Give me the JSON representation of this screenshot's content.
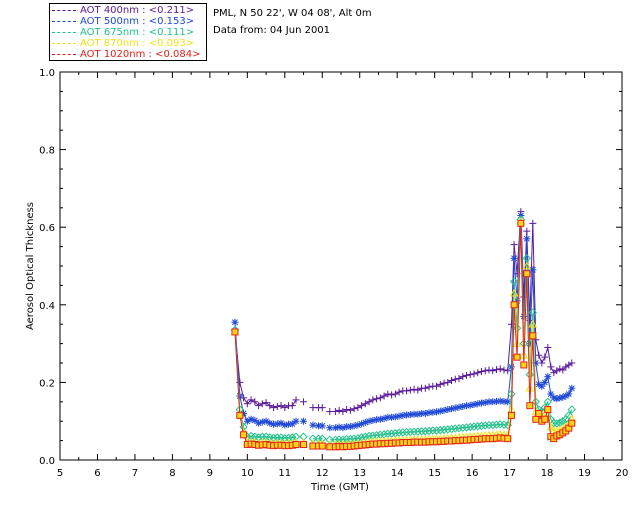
{
  "header": {
    "location": "PML, N 50 22', W 04 08', Alt 0m",
    "date_line": "Data from: 04 Jun 2001"
  },
  "legend": [
    {
      "label": "AOT  400nm : <0.211>",
      "color": "#5a1a9a"
    },
    {
      "label": "AOT  500nm : <0.153>",
      "color": "#1f49d6"
    },
    {
      "label": "AOT  675nm : <0.111>",
      "color": "#21c18b"
    },
    {
      "label": "AOT  870nm : <0.093>",
      "color": "#f0e21a"
    },
    {
      "label": "AOT 1020nm : <0.084>",
      "color": "#e0221b"
    }
  ],
  "chart_data": {
    "type": "scatter",
    "title": "",
    "xlabel": "Time (GMT)",
    "ylabel": "Aerosol Optical Thickness",
    "xlim": [
      5,
      20
    ],
    "ylim": [
      0.0,
      1.0
    ],
    "xticks": [
      5,
      6,
      7,
      8,
      9,
      10,
      11,
      12,
      13,
      14,
      15,
      16,
      17,
      18,
      19,
      20
    ],
    "yticks": [
      0.0,
      0.2,
      0.4,
      0.6,
      0.8,
      1.0
    ],
    "ytick_labels": [
      "0.0",
      "0.2",
      "0.4",
      "0.6",
      "0.8",
      "1.0"
    ],
    "grid": false,
    "x": [
      9.67,
      9.8,
      9.9,
      10.0,
      10.1,
      10.2,
      10.3,
      10.4,
      10.5,
      10.6,
      10.7,
      10.8,
      10.9,
      11.0,
      11.1,
      11.2,
      11.3,
      11.5,
      11.75,
      11.9,
      12.0,
      12.2,
      12.35,
      12.45,
      12.55,
      12.65,
      12.75,
      12.85,
      12.95,
      13.05,
      13.15,
      13.25,
      13.35,
      13.45,
      13.55,
      13.65,
      13.75,
      13.85,
      13.95,
      14.05,
      14.15,
      14.25,
      14.35,
      14.45,
      14.55,
      14.65,
      14.75,
      14.85,
      14.95,
      15.05,
      15.15,
      15.25,
      15.35,
      15.45,
      15.55,
      15.65,
      15.75,
      15.85,
      15.95,
      16.05,
      16.15,
      16.25,
      16.35,
      16.45,
      16.55,
      16.65,
      16.75,
      16.85,
      16.95,
      17.05,
      17.12,
      17.2,
      17.3,
      17.38,
      17.46,
      17.54,
      17.62,
      17.7,
      17.78,
      17.86,
      17.94,
      18.02,
      18.1,
      18.18,
      18.26,
      18.34,
      18.42,
      18.5,
      18.58,
      18.66
    ],
    "series": [
      {
        "name": "AOT  400nm",
        "marker": "plus",
        "values": [
          0.335,
          0.2,
          0.16,
          0.145,
          0.155,
          0.15,
          0.14,
          0.145,
          0.148,
          0.14,
          0.135,
          0.138,
          0.14,
          0.135,
          0.14,
          0.14,
          0.155,
          0.15,
          0.135,
          0.135,
          0.135,
          0.125,
          0.125,
          0.128,
          0.125,
          0.13,
          0.128,
          0.132,
          0.135,
          0.14,
          0.145,
          0.15,
          0.155,
          0.158,
          0.16,
          0.165,
          0.17,
          0.168,
          0.17,
          0.175,
          0.178,
          0.178,
          0.18,
          0.182,
          0.18,
          0.185,
          0.185,
          0.188,
          0.19,
          0.19,
          0.195,
          0.198,
          0.2,
          0.205,
          0.208,
          0.21,
          0.215,
          0.218,
          0.22,
          0.222,
          0.225,
          0.228,
          0.23,
          0.232,
          0.23,
          0.233,
          0.235,
          0.232,
          0.23,
          0.35,
          0.555,
          0.48,
          0.64,
          0.42,
          0.59,
          0.36,
          0.61,
          0.31,
          0.27,
          0.25,
          0.265,
          0.29,
          0.24,
          0.225,
          0.23,
          0.235,
          0.232,
          0.24,
          0.245,
          0.25
        ]
      },
      {
        "name": "AOT  500nm",
        "marker": "star",
        "values": [
          0.355,
          0.165,
          0.12,
          0.1,
          0.105,
          0.102,
          0.095,
          0.098,
          0.1,
          0.095,
          0.092,
          0.093,
          0.095,
          0.09,
          0.092,
          0.093,
          0.1,
          0.1,
          0.09,
          0.088,
          0.088,
          0.083,
          0.083,
          0.085,
          0.083,
          0.086,
          0.086,
          0.088,
          0.09,
          0.093,
          0.097,
          0.1,
          0.102,
          0.104,
          0.105,
          0.107,
          0.11,
          0.11,
          0.111,
          0.113,
          0.115,
          0.116,
          0.117,
          0.118,
          0.118,
          0.12,
          0.12,
          0.122,
          0.123,
          0.124,
          0.126,
          0.128,
          0.13,
          0.132,
          0.134,
          0.136,
          0.138,
          0.14,
          0.141,
          0.143,
          0.145,
          0.147,
          0.148,
          0.15,
          0.15,
          0.151,
          0.152,
          0.151,
          0.15,
          0.24,
          0.52,
          0.41,
          0.63,
          0.37,
          0.57,
          0.3,
          0.49,
          0.25,
          0.195,
          0.19,
          0.2,
          0.215,
          0.17,
          0.16,
          0.158,
          0.16,
          0.162,
          0.165,
          0.17,
          0.185
        ]
      },
      {
        "name": "AOT  675nm",
        "marker": "diamond",
        "values": [
          0.335,
          0.13,
          0.085,
          0.06,
          0.062,
          0.06,
          0.058,
          0.06,
          0.06,
          0.058,
          0.057,
          0.058,
          0.058,
          0.056,
          0.057,
          0.058,
          0.06,
          0.06,
          0.055,
          0.055,
          0.055,
          0.052,
          0.052,
          0.053,
          0.052,
          0.054,
          0.054,
          0.055,
          0.056,
          0.058,
          0.06,
          0.062,
          0.063,
          0.064,
          0.065,
          0.066,
          0.068,
          0.068,
          0.069,
          0.07,
          0.071,
          0.072,
          0.072,
          0.073,
          0.073,
          0.074,
          0.074,
          0.075,
          0.076,
          0.076,
          0.077,
          0.078,
          0.079,
          0.08,
          0.081,
          0.082,
          0.083,
          0.084,
          0.085,
          0.086,
          0.087,
          0.088,
          0.089,
          0.09,
          0.09,
          0.091,
          0.092,
          0.091,
          0.09,
          0.17,
          0.46,
          0.34,
          0.62,
          0.3,
          0.52,
          0.22,
          0.38,
          0.15,
          0.13,
          0.125,
          0.135,
          0.15,
          0.105,
          0.095,
          0.094,
          0.096,
          0.1,
          0.105,
          0.115,
          0.13
        ]
      },
      {
        "name": "AOT  870nm",
        "marker": "triangle",
        "values": [
          0.33,
          0.12,
          0.07,
          0.045,
          0.046,
          0.045,
          0.043,
          0.044,
          0.045,
          0.043,
          0.042,
          0.043,
          0.043,
          0.042,
          0.042,
          0.043,
          0.045,
          0.045,
          0.041,
          0.041,
          0.041,
          0.039,
          0.039,
          0.04,
          0.039,
          0.04,
          0.04,
          0.041,
          0.042,
          0.043,
          0.044,
          0.046,
          0.047,
          0.047,
          0.048,
          0.048,
          0.049,
          0.049,
          0.05,
          0.05,
          0.051,
          0.051,
          0.052,
          0.052,
          0.052,
          0.053,
          0.053,
          0.054,
          0.054,
          0.054,
          0.055,
          0.055,
          0.056,
          0.057,
          0.057,
          0.058,
          0.059,
          0.059,
          0.06,
          0.061,
          0.062,
          0.062,
          0.063,
          0.064,
          0.064,
          0.065,
          0.066,
          0.065,
          0.064,
          0.13,
          0.43,
          0.3,
          0.615,
          0.27,
          0.5,
          0.185,
          0.35,
          0.125,
          0.11,
          0.105,
          0.115,
          0.13,
          0.085,
          0.075,
          0.074,
          0.076,
          0.08,
          0.085,
          0.092,
          0.105
        ]
      },
      {
        "name": "AOT 1020nm",
        "marker": "square",
        "values": [
          0.33,
          0.115,
          0.065,
          0.04,
          0.041,
          0.04,
          0.038,
          0.039,
          0.04,
          0.038,
          0.037,
          0.038,
          0.038,
          0.037,
          0.037,
          0.038,
          0.04,
          0.04,
          0.036,
          0.036,
          0.036,
          0.034,
          0.034,
          0.035,
          0.034,
          0.035,
          0.035,
          0.036,
          0.037,
          0.038,
          0.039,
          0.04,
          0.041,
          0.041,
          0.042,
          0.042,
          0.043,
          0.043,
          0.044,
          0.044,
          0.045,
          0.045,
          0.045,
          0.046,
          0.046,
          0.046,
          0.046,
          0.047,
          0.047,
          0.047,
          0.048,
          0.048,
          0.049,
          0.049,
          0.05,
          0.05,
          0.051,
          0.051,
          0.052,
          0.053,
          0.053,
          0.054,
          0.055,
          0.055,
          0.055,
          0.056,
          0.057,
          0.056,
          0.055,
          0.115,
          0.4,
          0.265,
          0.61,
          0.245,
          0.48,
          0.14,
          0.32,
          0.105,
          0.12,
          0.1,
          0.105,
          0.13,
          0.06,
          0.055,
          0.062,
          0.065,
          0.07,
          0.075,
          0.082,
          0.095
        ]
      }
    ]
  }
}
